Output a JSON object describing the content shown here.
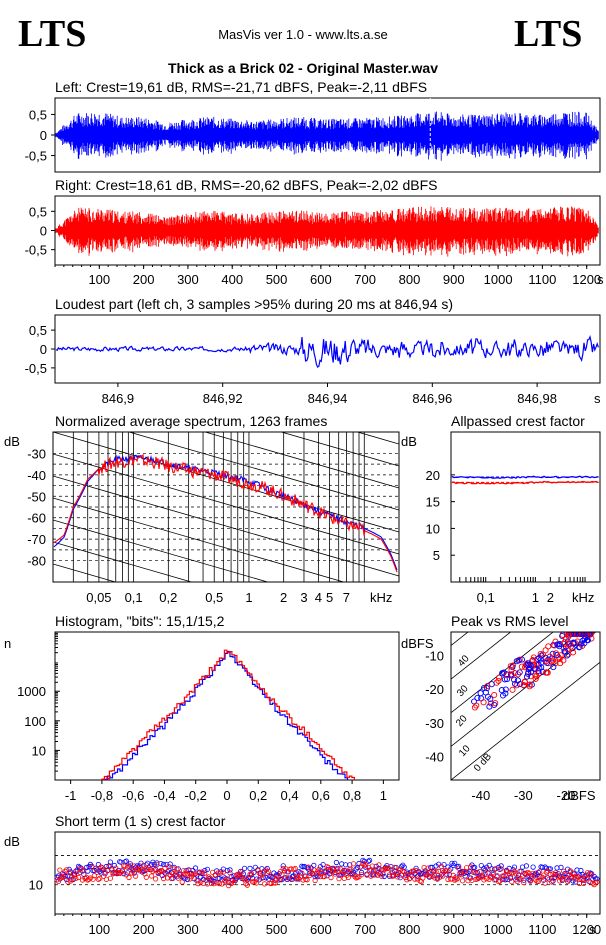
{
  "header": {
    "logo_left": "LTS",
    "logo_right": "LTS",
    "app": "MasVis ver 1.0 - www.lts.a.se",
    "file_title": "Thick as a Brick 02 - Original Master.wav"
  },
  "colors": {
    "left": "#0000ff",
    "right": "#ff0000",
    "axis": "#000000",
    "grid": "#000000"
  },
  "chart_data": [
    {
      "type": "area",
      "title": "Left: Crest=19,61 dB, RMS=-21,71 dBFS, Peak=-2,11 dBFS",
      "ylim": [
        -0.9,
        0.9
      ],
      "yticks": [
        "0,5",
        "0",
        "-0,5"
      ],
      "xlim": [
        0,
        1230
      ],
      "marker_x": 846.94,
      "series": [
        {
          "envelope_x": [
            0,
            50,
            100,
            150,
            200,
            250,
            300,
            350,
            400,
            450,
            500,
            550,
            600,
            650,
            700,
            750,
            800,
            850,
            900,
            950,
            1000,
            1050,
            1100,
            1150,
            1200,
            1230
          ],
          "amplitude": [
            0.05,
            0.55,
            0.6,
            0.45,
            0.45,
            0.3,
            0.4,
            0.45,
            0.4,
            0.35,
            0.4,
            0.45,
            0.4,
            0.4,
            0.42,
            0.45,
            0.5,
            0.6,
            0.5,
            0.5,
            0.55,
            0.55,
            0.5,
            0.6,
            0.55,
            0.05
          ]
        }
      ]
    },
    {
      "type": "area",
      "title": "Right: Crest=18,61 dB, RMS=-20,62 dBFS, Peak=-2,02 dBFS",
      "ylim": [
        -0.9,
        0.9
      ],
      "yticks": [
        "0,5",
        "0",
        "-0,5"
      ],
      "xlim": [
        0,
        1230
      ],
      "xticks": [
        100,
        200,
        300,
        400,
        500,
        600,
        700,
        800,
        900,
        1000,
        1100,
        1200
      ],
      "x_unit": "s",
      "series": [
        {
          "envelope_x": [
            0,
            50,
            100,
            150,
            200,
            250,
            300,
            350,
            400,
            450,
            500,
            550,
            600,
            650,
            700,
            750,
            800,
            850,
            900,
            950,
            1000,
            1050,
            1100,
            1150,
            1200,
            1230
          ],
          "amplitude": [
            0.05,
            0.6,
            0.6,
            0.5,
            0.5,
            0.35,
            0.45,
            0.55,
            0.45,
            0.45,
            0.5,
            0.55,
            0.45,
            0.5,
            0.5,
            0.55,
            0.6,
            0.65,
            0.6,
            0.6,
            0.6,
            0.6,
            0.55,
            0.65,
            0.6,
            0.05
          ]
        }
      ]
    },
    {
      "type": "line",
      "title": "Loudest part (left  ch, 3 samples >95% during 20 ms at 846,94 s)",
      "ylim": [
        -0.9,
        0.9
      ],
      "yticks": [
        "0,5",
        "0",
        "-0,5"
      ],
      "xlim": [
        846.888,
        846.992
      ],
      "xticks": [
        "846,9",
        "846,92",
        "846,94",
        "846,96",
        "846,98"
      ],
      "xtick_values": [
        846.9,
        846.92,
        846.94,
        846.96,
        846.98
      ],
      "x_unit": "s"
    },
    {
      "type": "line",
      "title": "Normalized average spectrum, 1263 frames",
      "ylabel": "dB",
      "yticks": [
        "-30",
        "-40",
        "-50",
        "-60",
        "-70",
        "-80"
      ],
      "ytick_values": [
        -30,
        -40,
        -50,
        -60,
        -70,
        -80
      ],
      "ylim": [
        -90,
        -20
      ],
      "xlim": [
        0.02,
        20
      ],
      "xscale": "log",
      "xticks": [
        "0,05",
        "0,1",
        "0,2",
        "0,5",
        "1",
        "2",
        "3",
        "4",
        "5",
        "7"
      ],
      "xtick_values": [
        0.05,
        0.1,
        0.2,
        0.5,
        1,
        2,
        3,
        4,
        5,
        7
      ],
      "x_unit": "kHz",
      "series": [
        {
          "x": [
            0.02,
            0.025,
            0.03,
            0.04,
            0.05,
            0.07,
            0.1,
            0.15,
            0.2,
            0.3,
            0.5,
            0.7,
            1,
            1.5,
            2,
            3,
            4,
            5,
            7,
            10,
            14,
            17,
            20
          ],
          "y": [
            -72,
            -68,
            -55,
            -42,
            -37,
            -34,
            -33,
            -34,
            -36,
            -38,
            -40,
            -42,
            -44,
            -47,
            -50,
            -54,
            -57,
            -60,
            -63,
            -66,
            -70,
            -78,
            -88
          ]
        },
        {
          "x": [
            0.02,
            0.025,
            0.03,
            0.04,
            0.05,
            0.07,
            0.1,
            0.15,
            0.2,
            0.3,
            0.5,
            0.7,
            1,
            1.5,
            2,
            3,
            4,
            5,
            7,
            10,
            14,
            17,
            20
          ],
          "y": [
            -74,
            -69,
            -56,
            -43,
            -37,
            -33,
            -32,
            -33,
            -35,
            -37,
            -39,
            -41,
            -43,
            -47,
            -50,
            -54,
            -57,
            -59,
            -62,
            -65,
            -69,
            -77,
            -87
          ]
        }
      ]
    },
    {
      "type": "line",
      "title": "Allpassed crest factor",
      "ylabel": "dB",
      "yticks": [
        "20",
        "15",
        "10",
        "5"
      ],
      "ytick_values": [
        20,
        15,
        10,
        5
      ],
      "ylim": [
        0,
        28
      ],
      "xlim": [
        0.02,
        20
      ],
      "xscale": "log",
      "xticks": [
        "0,1",
        "1",
        "2"
      ],
      "xtick_values": [
        0.1,
        1,
        2
      ],
      "x_unit": "kHz",
      "series": [
        {
          "x": [
            0.02,
            0.1,
            1,
            10,
            20
          ],
          "y": [
            19.6,
            19.5,
            19.6,
            19.6,
            19.6
          ],
          "ref": 19.61
        },
        {
          "x": [
            0.02,
            0.1,
            1,
            10,
            20
          ],
          "y": [
            18.5,
            18.4,
            18.6,
            18.7,
            18.6
          ],
          "ref": 18.61
        }
      ]
    },
    {
      "type": "line",
      "title": "Histogram, \"bits\": 15,1/15,2",
      "ylabel": "n",
      "yscale": "log",
      "yticks": [
        "1000",
        "100",
        "10"
      ],
      "ytick_values": [
        1000,
        100,
        10
      ],
      "ylim": [
        1,
        100000
      ],
      "xlim": [
        -1.1,
        1.1
      ],
      "xticks": [
        "-1",
        "-0,8",
        "-0,6",
        "-0,4",
        "-0,2",
        "0",
        "0,2",
        "0,4",
        "0,6",
        "0,8",
        "1"
      ],
      "xtick_values": [
        -1,
        -0.8,
        -0.6,
        -0.4,
        -0.2,
        0,
        0.2,
        0.4,
        0.6,
        0.8,
        1
      ],
      "series": [
        {
          "x": [
            -0.78,
            -0.7,
            -0.6,
            -0.5,
            -0.4,
            -0.3,
            -0.2,
            -0.1,
            0,
            0.1,
            0.2,
            0.3,
            0.4,
            0.5,
            0.6,
            0.7,
            0.76
          ],
          "y": [
            1,
            2,
            8,
            25,
            80,
            300,
            1200,
            5000,
            22000,
            5000,
            1200,
            300,
            80,
            25,
            6,
            2,
            1
          ]
        },
        {
          "x": [
            -0.8,
            -0.7,
            -0.6,
            -0.5,
            -0.4,
            -0.3,
            -0.2,
            -0.1,
            0,
            0.1,
            0.2,
            0.3,
            0.4,
            0.5,
            0.6,
            0.7,
            0.8
          ],
          "y": [
            1,
            3,
            12,
            40,
            120,
            400,
            1500,
            6000,
            26000,
            6000,
            1500,
            400,
            120,
            40,
            12,
            3,
            1
          ]
        }
      ]
    },
    {
      "type": "scatter",
      "title": "Peak vs RMS level",
      "ylabel": "dBFS",
      "xlabel": "dBFS",
      "yticks": [
        "-10",
        "-20",
        "-30",
        "-40"
      ],
      "ytick_values": [
        -10,
        -20,
        -30,
        -40
      ],
      "ylim": [
        -47,
        -3
      ],
      "xticks": [
        "-40",
        "-30",
        "-20"
      ],
      "xtick_values": [
        -40,
        -30,
        -20
      ],
      "xlim": [
        -47,
        -12
      ],
      "diagonal_labels": [
        "40",
        "30",
        "20",
        "10",
        "0 dB"
      ],
      "diagonal_offsets": [
        40,
        30,
        20,
        10,
        0
      ]
    },
    {
      "type": "scatter",
      "title": "Short term (1 s) crest factor",
      "ylabel": "dB",
      "yticks": [
        "10"
      ],
      "ytick_values": [
        10
      ],
      "ylim": [
        0,
        28
      ],
      "dashed_levels": [
        10,
        20
      ],
      "xlim": [
        0,
        1230
      ],
      "xticks": [
        100,
        200,
        300,
        400,
        500,
        600,
        700,
        800,
        900,
        1000,
        1100,
        1200
      ],
      "x_unit": "s",
      "series": [
        {
          "name_note": "left",
          "x": [
            30,
            100,
            200,
            300,
            400,
            500,
            600,
            700,
            800,
            900,
            1000,
            1100,
            1200
          ],
          "y": [
            14,
            15,
            16,
            14,
            13,
            14,
            15,
            16,
            14,
            15,
            14,
            14,
            13
          ]
        },
        {
          "name_note": "right",
          "x": [
            30,
            100,
            200,
            300,
            400,
            500,
            600,
            700,
            800,
            900,
            1000,
            1100,
            1200
          ],
          "y": [
            13,
            14,
            15,
            13,
            12,
            13,
            14,
            15,
            13,
            14,
            13,
            13,
            12
          ]
        }
      ]
    }
  ]
}
